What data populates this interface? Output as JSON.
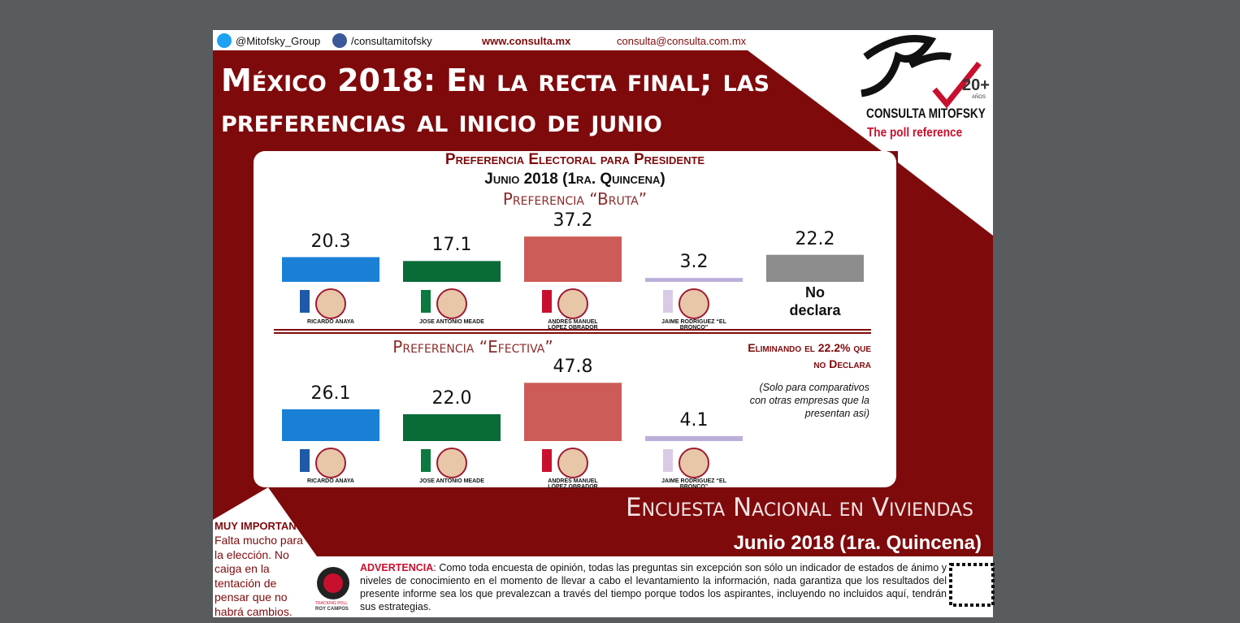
{
  "header": {
    "twitter": "@Mitofsky_Group",
    "facebook": "/consultamitofsky",
    "website": "www.consulta.mx",
    "email": "consulta@consulta.com.mx"
  },
  "title": "México 2018: En la recta final; las preferencias al inicio de junio",
  "logo": {
    "name": "CONSULTA MITOFSKY",
    "tagline": "The poll reference",
    "years": "20+",
    "years_label": "AÑOS"
  },
  "panel": {
    "title": "Preferencia Electoral para Presidente",
    "period": "Junio 2018 (1ra. Quincena)"
  },
  "chart_data": [
    {
      "type": "bar",
      "title": "Preferencia “Bruta”",
      "categories": [
        "RICARDO ANAYA",
        "JOSE ANTONIO MEADE",
        "ANDRÉS MANUEL LÓPEZ OBRADOR",
        "JAIME RODRÍGUEZ “EL BRONCO”",
        "No declara"
      ],
      "values": [
        20.3,
        17.1,
        37.2,
        3.2,
        22.2
      ],
      "colors": [
        "#1a80d6",
        "#086b38",
        "#cd5b58",
        "#bcaedb",
        "#8c8c8c"
      ]
    },
    {
      "type": "bar",
      "title": "Preferencia “Efectiva”",
      "categories": [
        "RICARDO ANAYA",
        "JOSE ANTONIO MEADE",
        "ANDRÉS MANUEL LÓPEZ OBRADOR",
        "JAIME RODRÍGUEZ “EL BRONCO”"
      ],
      "values": [
        26.1,
        22.0,
        47.8,
        4.1
      ],
      "value_labels": [
        "26.1",
        "22.0",
        "47.8",
        "4.1"
      ],
      "colors": [
        "#1a80d6",
        "#086b38",
        "#cd5b58",
        "#bcaedb"
      ],
      "annotation": "Eliminando el 22.2% que no Declara",
      "note": "(Solo para comparativos con otras empresas que la presentan asi)"
    }
  ],
  "survey": {
    "title": "Encuesta Nacional en Viviendas",
    "period": "Junio 2018 (1ra. Quincena)"
  },
  "important": {
    "heading": "MUY IMPORTANTE",
    "text": "Falta mucho para la elección. No caiga en la tentación de pensar que no habrá cambios."
  },
  "tracking": {
    "label": "TRACKING POLL",
    "name": "ROY CAMPOS"
  },
  "warning": {
    "label": "ADVERTENCIA",
    "text": ": Como toda encuesta de opinión, todas las preguntas sin excepción son sólo un indicador de estados de ánimo y niveles de conocimiento en el momento de llevar a cabo el levantamiento la información, nada garantiza que los resultados del presente informe sea los que prevalezcan a través del tiempo porque todos los aspirantes, incluyendo no incluidos aquí, tendrán sus estrategias."
  }
}
